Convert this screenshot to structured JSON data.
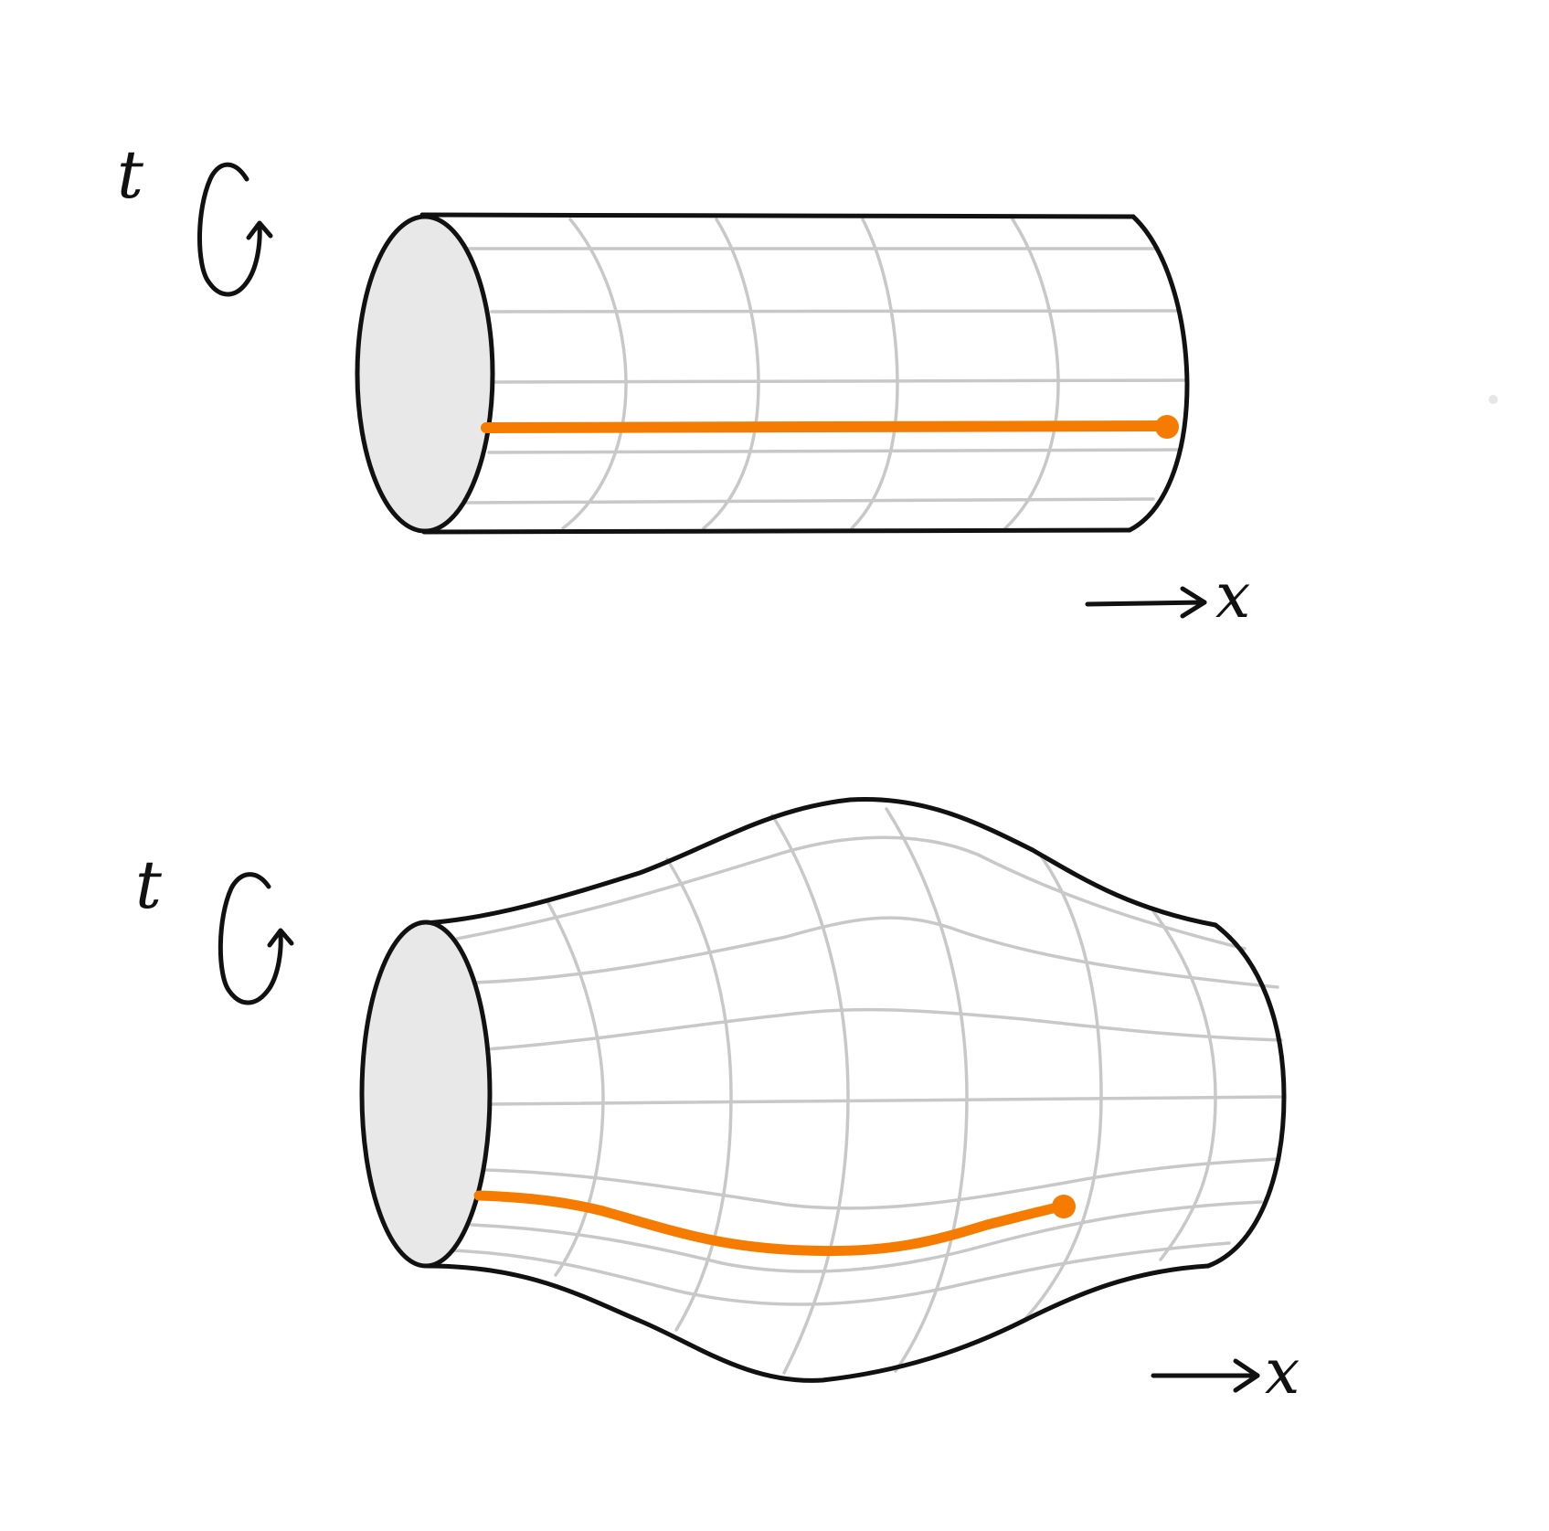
{
  "colors": {
    "outline": "#111111",
    "grid": "#c8c8c8",
    "cap_fill": "#e8e8e8",
    "path": "#f57c00"
  },
  "diagrams": [
    {
      "id": "uniform-cylinder",
      "time_label": "t",
      "axis_label": "x",
      "icons": [
        "rotation-arrow-icon",
        "axis-arrow-icon"
      ]
    },
    {
      "id": "deformed-cylinder",
      "time_label": "t",
      "axis_label": "x",
      "icons": [
        "rotation-arrow-icon",
        "axis-arrow-icon"
      ]
    }
  ]
}
